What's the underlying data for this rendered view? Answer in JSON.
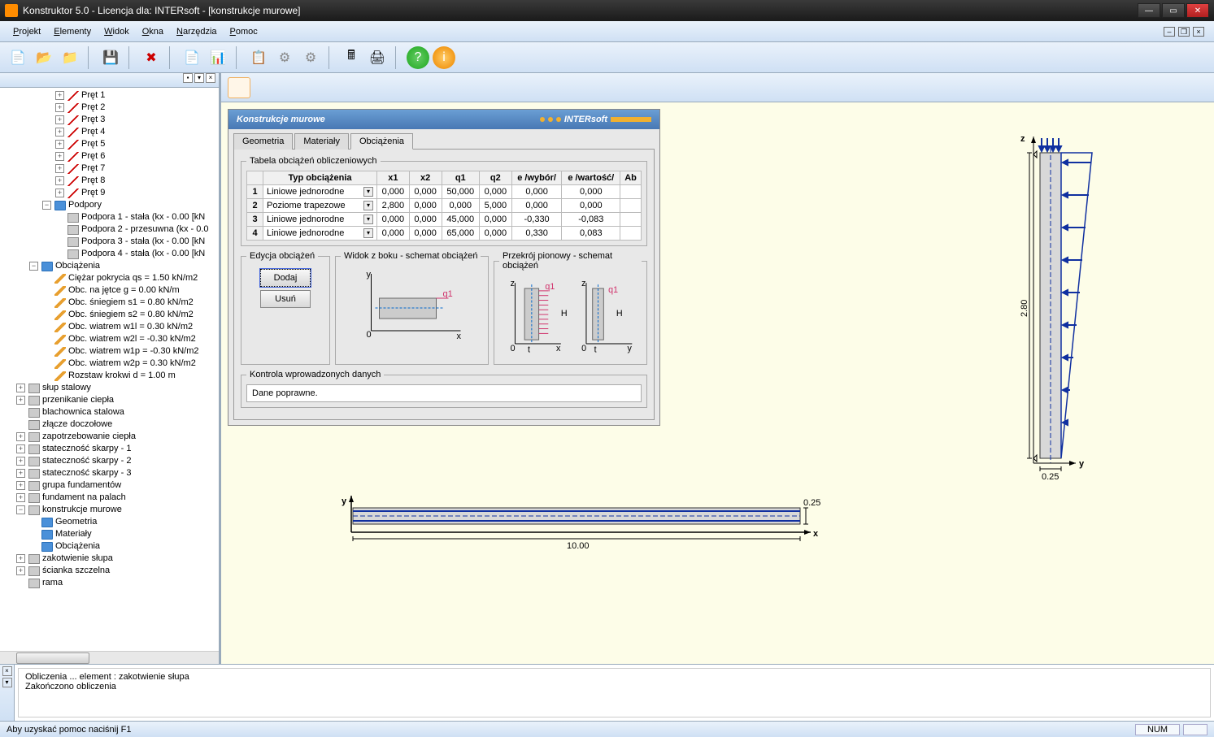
{
  "title": "Konstruktor 5.0 - Licencja dla: INTERsoft - [konstrukcje murowe]",
  "menu": [
    "Projekt",
    "Elementy",
    "Widok",
    "Okna",
    "Narzędzia",
    "Pomoc"
  ],
  "toolbar_icons": [
    "📄",
    "📂",
    "📁",
    "💾",
    "✖",
    "📄",
    "📊",
    "📋",
    "⚙",
    "⚙",
    "🖩",
    "🖨",
    "❓",
    "ℹ"
  ],
  "tree": {
    "prety": [
      "Pręt 1",
      "Pręt 2",
      "Pręt 3",
      "Pręt 4",
      "Pręt 5",
      "Pręt 6",
      "Pręt 7",
      "Pręt 8",
      "Pręt 9"
    ],
    "podpory_label": "Podpory",
    "podpory": [
      "Podpora 1 - stała (kx - 0.00 [kN",
      "Podpora 2 - przesuwna (kx - 0.0",
      "Podpora 3 - stała (kx - 0.00 [kN",
      "Podpora 4 - stała (kx - 0.00 [kN"
    ],
    "obciazenia_label": "Obciążenia",
    "obciazenia": [
      "Ciężar pokrycia qs = 1.50 kN/m2",
      "Obc. na jętce g = 0.00 kN/m",
      "Obc. śniegiem s1 = 0.80 kN/m2",
      "Obc. śniegiem s2 = 0.80 kN/m2",
      "Obc. wiatrem w1l = 0.30 kN/m2",
      "Obc. wiatrem w2l = -0.30 kN/m2",
      "Obc. wiatrem w1p = -0.30 kN/m2",
      "Obc. wiatrem w2p = 0.30 kN/m2",
      "Rozstaw krokwi d = 1.00 m"
    ],
    "modules": [
      "słup stalowy",
      "przenikanie ciepła",
      "blachownica stalowa",
      "złącze doczołowe",
      "zapotrzebowanie ciepła",
      "stateczność skarpy - 1",
      "stateczność skarpy - 2",
      "stateczność skarpy - 3",
      "grupa fundamentów",
      "fundament na palach",
      "konstrukcje murowe"
    ],
    "murowe_children": [
      "Geometria",
      "Materiały",
      "Obciążenia"
    ],
    "modules2": [
      "zakotwienie słupa",
      "ścianka szczelna",
      "rama"
    ]
  },
  "dialog": {
    "title": "Konstrukcje murowe",
    "brand": "INTERsoft",
    "tabs": [
      "Geometria",
      "Materiały",
      "Obciążenia"
    ],
    "table_legend": "Tabela obciążeń obliczeniowych",
    "headers": [
      "Typ obciążenia",
      "x1",
      "x2",
      "q1",
      "q2",
      "e /wybór/",
      "e /wartość/",
      "Ab"
    ],
    "rows": [
      {
        "n": "1",
        "type": "Liniowe jednorodne",
        "x1": "0,000",
        "x2": "0,000",
        "q1": "50,000",
        "q2": "0,000",
        "ew": "0,000",
        "ev": "0,000",
        "ab": ""
      },
      {
        "n": "2",
        "type": "Poziome trapezowe",
        "x1": "2,800",
        "x2": "0,000",
        "q1": "0,000",
        "q2": "5,000",
        "ew": "0,000",
        "ev": "0,000",
        "ab": ""
      },
      {
        "n": "3",
        "type": "Liniowe jednorodne",
        "x1": "0,000",
        "x2": "0,000",
        "q1": "45,000",
        "q2": "0,000",
        "ew": "-0,330",
        "ev": "-0,083",
        "ab": ""
      },
      {
        "n": "4",
        "type": "Liniowe jednorodne",
        "x1": "0,000",
        "x2": "0,000",
        "q1": "65,000",
        "q2": "0,000",
        "ew": "0,330",
        "ev": "0,083",
        "ab": ""
      }
    ],
    "edit_legend": "Edycja obciążeń",
    "btn_add": "Dodaj",
    "btn_del": "Usuń",
    "side_legend": "Widok z boku - schemat obciążeń",
    "sect_legend": "Przekrój pionowy - schemat obciążeń",
    "ctrl_legend": "Kontrola wprowadzonych danych",
    "ctrl_text": "Dane poprawne."
  },
  "plan": {
    "len": "10.00",
    "thk": "0.25",
    "xl": "x",
    "yl": "y"
  },
  "elev": {
    "h": "2.80",
    "t": "0.25",
    "zl": "z",
    "yl": "y"
  },
  "output": {
    "l1": "Obliczenia ... element : zakotwienie słupa",
    "l2": "Zakończono obliczenia"
  },
  "status": {
    "help": "Aby uzyskać pomoc naciśnij F1",
    "num": "NUM"
  }
}
